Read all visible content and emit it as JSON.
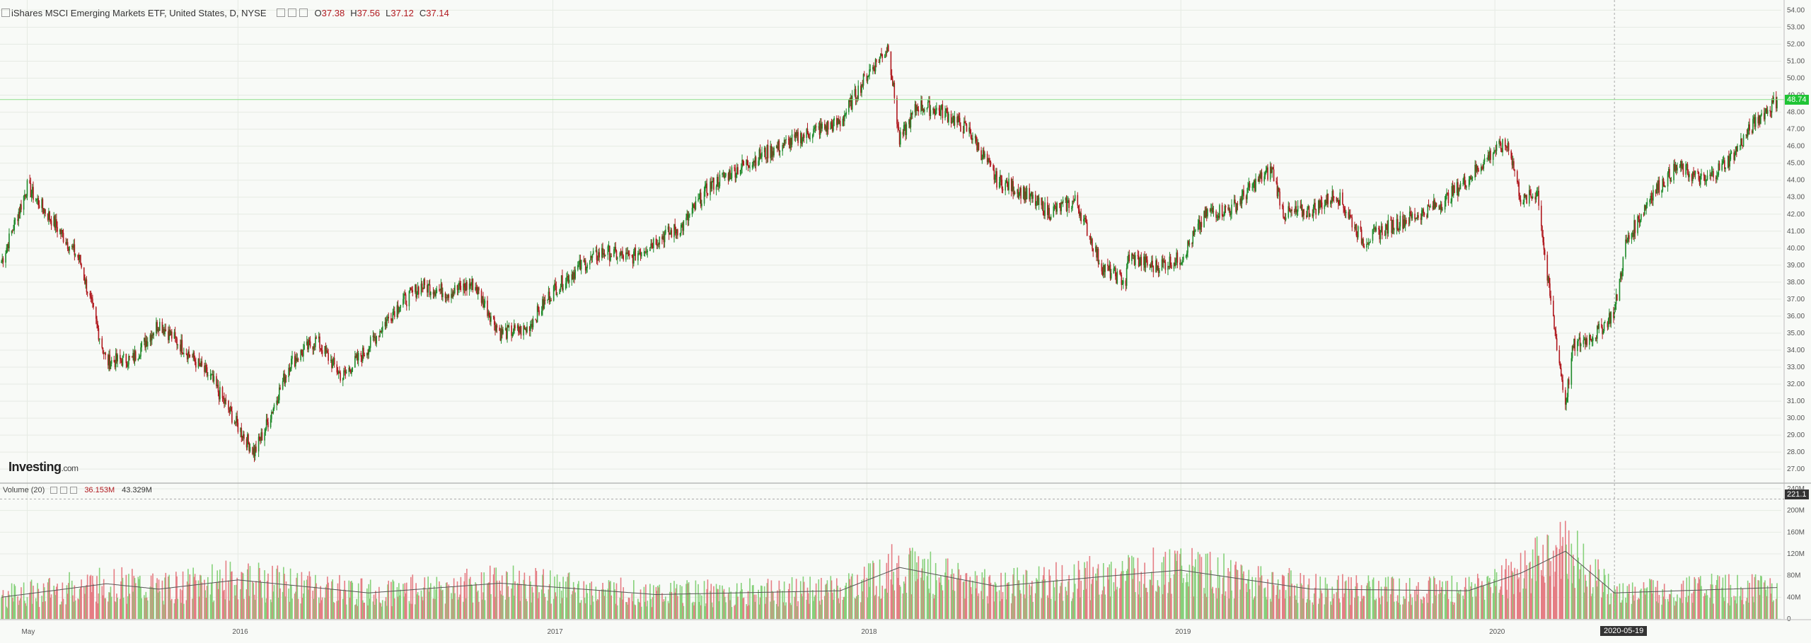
{
  "header": {
    "title": "iShares MSCI Emerging Markets ETF, United States, D, NYSE",
    "ohlc": [
      {
        "label": "O",
        "value": "37.38"
      },
      {
        "label": "H",
        "value": "37.56"
      },
      {
        "label": "L",
        "value": "37.12"
      },
      {
        "label": "C",
        "value": "37.14"
      }
    ]
  },
  "volume_header": {
    "title": "Volume (20)",
    "value1": "36.153M",
    "value2": "43.329M"
  },
  "logo": {
    "main": "Investing",
    "suffix": ".com"
  },
  "tags": {
    "price": "48.74",
    "volume": "221.1",
    "date": "2020-05-19"
  },
  "colors": {
    "up": "#1e8a2a",
    "down": "#b0191f",
    "vol_up": "#86d17a",
    "vol_down": "#e57d84",
    "price_line": "#8ee08a",
    "grid": "#e6ebe4"
  },
  "chart_data": [
    {
      "type": "candlestick",
      "title": "iShares MSCI Emerging Markets ETF, United States, D, NYSE",
      "x_ticks": [
        "May",
        "2016",
        "2017",
        "2018",
        "2019",
        "2020"
      ],
      "y_ticks": [
        "27.00",
        "28.00",
        "29.00",
        "30.00",
        "31.00",
        "32.00",
        "33.00",
        "34.00",
        "35.00",
        "36.00",
        "37.00",
        "38.00",
        "39.00",
        "40.00",
        "41.00",
        "42.00",
        "43.00",
        "44.00",
        "45.00",
        "46.00",
        "47.00",
        "48.00",
        "49.00",
        "50.00",
        "51.00",
        "52.00",
        "53.00",
        "54.00"
      ],
      "ylim": [
        26.3,
        54.6
      ],
      "grid": true,
      "last_price": 48.74,
      "close_series": [
        {
          "date": "2015-04-01",
          "close": 39.2
        },
        {
          "date": "2015-05-01",
          "close": 43.6
        },
        {
          "date": "2015-06-01",
          "close": 41.5
        },
        {
          "date": "2015-07-01",
          "close": 39.3
        },
        {
          "date": "2015-08-01",
          "close": 33.3
        },
        {
          "date": "2015-09-01",
          "close": 33.5
        },
        {
          "date": "2015-10-01",
          "close": 35.6
        },
        {
          "date": "2015-11-01",
          "close": 34.0
        },
        {
          "date": "2015-12-01",
          "close": 32.3
        },
        {
          "date": "2016-01-01",
          "close": 29.5
        },
        {
          "date": "2016-01-20",
          "close": 28.0
        },
        {
          "date": "2016-02-01",
          "close": 29.3
        },
        {
          "date": "2016-03-01",
          "close": 33.2
        },
        {
          "date": "2016-04-01",
          "close": 34.6
        },
        {
          "date": "2016-05-01",
          "close": 32.4
        },
        {
          "date": "2016-06-01",
          "close": 34.2
        },
        {
          "date": "2016-07-01",
          "close": 36.4
        },
        {
          "date": "2016-08-01",
          "close": 37.8
        },
        {
          "date": "2016-09-01",
          "close": 37.4
        },
        {
          "date": "2016-10-01",
          "close": 37.9
        },
        {
          "date": "2016-11-01",
          "close": 35.0
        },
        {
          "date": "2016-12-01",
          "close": 35.2
        },
        {
          "date": "2017-01-01",
          "close": 37.5
        },
        {
          "date": "2017-02-01",
          "close": 38.9
        },
        {
          "date": "2017-03-01",
          "close": 39.8
        },
        {
          "date": "2017-04-01",
          "close": 39.4
        },
        {
          "date": "2017-05-01",
          "close": 40.5
        },
        {
          "date": "2017-06-01",
          "close": 41.3
        },
        {
          "date": "2017-07-01",
          "close": 43.6
        },
        {
          "date": "2017-08-01",
          "close": 44.6
        },
        {
          "date": "2017-09-01",
          "close": 45.5
        },
        {
          "date": "2017-10-01",
          "close": 46.2
        },
        {
          "date": "2017-11-01",
          "close": 46.9
        },
        {
          "date": "2017-12-01",
          "close": 47.4
        },
        {
          "date": "2018-01-01",
          "close": 50.2
        },
        {
          "date": "2018-01-26",
          "close": 51.9
        },
        {
          "date": "2018-02-08",
          "close": 46.3
        },
        {
          "date": "2018-03-01",
          "close": 48.4
        },
        {
          "date": "2018-04-01",
          "close": 48.0
        },
        {
          "date": "2018-05-01",
          "close": 46.8
        },
        {
          "date": "2018-06-01",
          "close": 44.0
        },
        {
          "date": "2018-07-01",
          "close": 43.3
        },
        {
          "date": "2018-08-01",
          "close": 42.1
        },
        {
          "date": "2018-09-01",
          "close": 42.8
        },
        {
          "date": "2018-10-01",
          "close": 38.9
        },
        {
          "date": "2018-10-29",
          "close": 38.0
        },
        {
          "date": "2018-11-01",
          "close": 39.5
        },
        {
          "date": "2018-12-01",
          "close": 38.9
        },
        {
          "date": "2019-01-01",
          "close": 39.4
        },
        {
          "date": "2019-02-01",
          "close": 42.1
        },
        {
          "date": "2019-03-01",
          "close": 42.3
        },
        {
          "date": "2019-04-01",
          "close": 44.0
        },
        {
          "date": "2019-04-17",
          "close": 44.6
        },
        {
          "date": "2019-05-01",
          "close": 42.0
        },
        {
          "date": "2019-06-01",
          "close": 42.2
        },
        {
          "date": "2019-07-01",
          "close": 43.2
        },
        {
          "date": "2019-08-01",
          "close": 40.4
        },
        {
          "date": "2019-09-01",
          "close": 41.3
        },
        {
          "date": "2019-10-01",
          "close": 41.9
        },
        {
          "date": "2019-11-01",
          "close": 42.7
        },
        {
          "date": "2019-12-01",
          "close": 44.1
        },
        {
          "date": "2020-01-01",
          "close": 45.8
        },
        {
          "date": "2020-01-17",
          "close": 46.1
        },
        {
          "date": "2020-02-01",
          "close": 42.7
        },
        {
          "date": "2020-02-20",
          "close": 43.3
        },
        {
          "date": "2020-03-01",
          "close": 38.6
        },
        {
          "date": "2020-03-23",
          "close": 30.8
        },
        {
          "date": "2020-04-01",
          "close": 34.2
        },
        {
          "date": "2020-05-01",
          "close": 35.1
        },
        {
          "date": "2020-05-19",
          "close": 36.3
        },
        {
          "date": "2020-06-01",
          "close": 40.2
        },
        {
          "date": "2020-07-01",
          "close": 43.2
        },
        {
          "date": "2020-08-01",
          "close": 44.8
        },
        {
          "date": "2020-09-01",
          "close": 43.9
        },
        {
          "date": "2020-10-01",
          "close": 45.3
        },
        {
          "date": "2020-11-01",
          "close": 47.6
        },
        {
          "date": "2020-11-24",
          "close": 48.7
        }
      ]
    },
    {
      "type": "bar",
      "title": "Volume (20)",
      "y_ticks": [
        "0",
        "40M",
        "80M",
        "120M",
        "160M",
        "200M",
        "240M"
      ],
      "ylim_millions": [
        0,
        240
      ],
      "grid": true,
      "last_value": "221.1",
      "volume_avg_series": [
        {
          "date": "2015-04-01",
          "volume_avg_m": 40
        },
        {
          "date": "2015-08-01",
          "volume_avg_m": 65
        },
        {
          "date": "2015-10-01",
          "volume_avg_m": 55
        },
        {
          "date": "2016-01-01",
          "volume_avg_m": 72
        },
        {
          "date": "2016-06-01",
          "volume_avg_m": 48
        },
        {
          "date": "2016-11-01",
          "volume_avg_m": 66
        },
        {
          "date": "2017-05-01",
          "volume_avg_m": 45
        },
        {
          "date": "2017-12-01",
          "volume_avg_m": 52
        },
        {
          "date": "2018-02-08",
          "volume_avg_m": 95
        },
        {
          "date": "2018-06-01",
          "volume_avg_m": 60
        },
        {
          "date": "2018-10-01",
          "volume_avg_m": 78
        },
        {
          "date": "2019-01-01",
          "volume_avg_m": 90
        },
        {
          "date": "2019-06-01",
          "volume_avg_m": 55
        },
        {
          "date": "2019-12-01",
          "volume_avg_m": 52
        },
        {
          "date": "2020-02-01",
          "volume_avg_m": 85
        },
        {
          "date": "2020-03-23",
          "volume_avg_m": 125
        },
        {
          "date": "2020-05-19",
          "volume_avg_m": 48
        },
        {
          "date": "2020-11-24",
          "volume_avg_m": 58
        }
      ]
    }
  ]
}
